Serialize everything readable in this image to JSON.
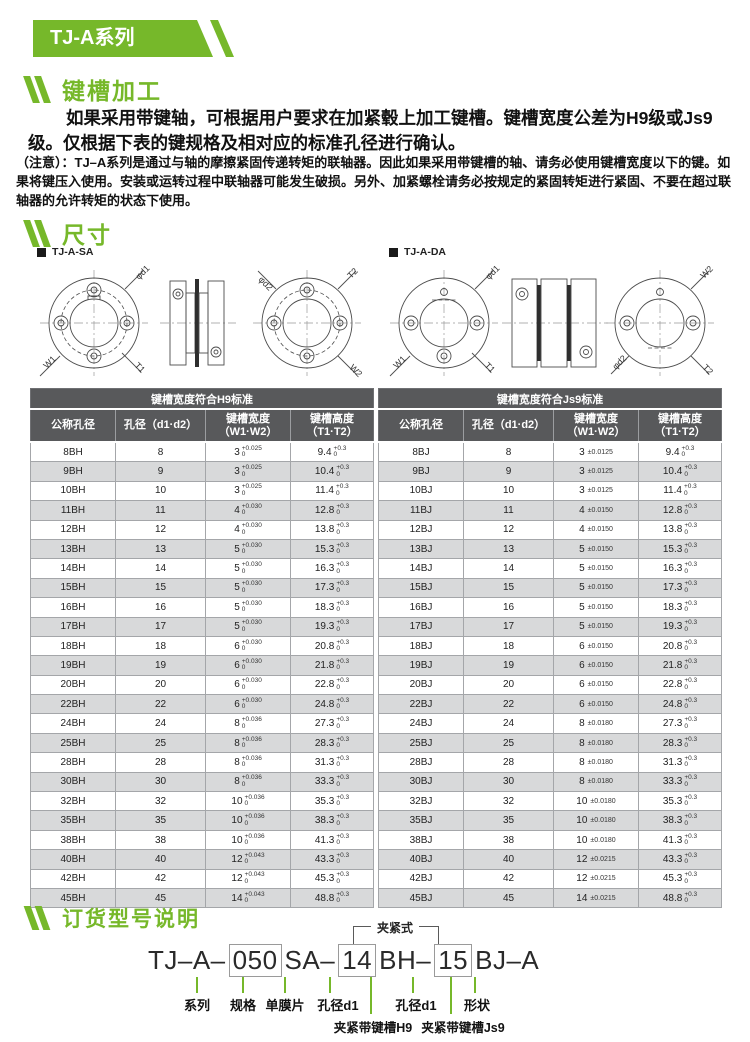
{
  "banner": {
    "title": "TJ-A系列"
  },
  "sections": {
    "keyway_title": "键槽加工",
    "dims_title": "尺寸",
    "ordering_title": "订货型号说明"
  },
  "paragraph": "如果采用带键轴，可根据用户要求在加紧毂上加工键槽。键槽宽度公差为H9级或Js9级。仅根据下表的键规格及相对应的标准孔径进行确认。",
  "note": "（注意）：TJ–A系列是通过与轴的摩擦紧固传递转矩的联轴器。因此如果采用带键槽的轴、请务必使用键槽宽度以下的键。如果将键压入使用。安装或运转过程中联轴器可能发生破损。另外、加紧螺栓请务必按规定的紧固转矩进行紧固、不要在超过联轴器的允许转矩的状态下使用。",
  "drawings": {
    "sa": {
      "caption": "TJ-A-SA",
      "front": {
        "d": "φd1",
        "w": "W1",
        "t": "T1"
      },
      "rear": {
        "d": "φd2",
        "t": "T2",
        "w": "W2"
      }
    },
    "da": {
      "caption": "TJ-A-DA",
      "front": {
        "d": "φd1",
        "w": "W1",
        "t": "T1"
      },
      "rear": {
        "d": "φd2",
        "t": "T2",
        "w": "W2"
      }
    }
  },
  "table": {
    "h9_header": "键槽宽度符合H9标准",
    "js9_header": "键槽宽度符合Js9标准",
    "columns": [
      {
        "l1": "公称孔径"
      },
      {
        "l1": "孔径（d1·d2）"
      },
      {
        "l1": "键槽宽度",
        "l2": "（W1·W2）"
      },
      {
        "l1": "键槽高度",
        "l2": "（T1·T2）"
      }
    ],
    "w_tol_bottom": "0",
    "h_tol_top": "+0.3",
    "h_tol_bottom": "0",
    "rows": [
      {
        "h9": "8BH",
        "js9": "8BJ",
        "bore": "8",
        "w": "3",
        "wtol": "+0.025",
        "jstol": "±0.0125",
        "h": "9.4"
      },
      {
        "h9": "9BH",
        "js9": "9BJ",
        "bore": "9",
        "w": "3",
        "wtol": "+0.025",
        "jstol": "±0.0125",
        "h": "10.4"
      },
      {
        "h9": "10BH",
        "js9": "10BJ",
        "bore": "10",
        "w": "3",
        "wtol": "+0.025",
        "jstol": "±0.0125",
        "h": "11.4"
      },
      {
        "h9": "11BH",
        "js9": "11BJ",
        "bore": "11",
        "w": "4",
        "wtol": "+0.030",
        "jstol": "±0.0150",
        "h": "12.8"
      },
      {
        "h9": "12BH",
        "js9": "12BJ",
        "bore": "12",
        "w": "4",
        "wtol": "+0.030",
        "jstol": "±0.0150",
        "h": "13.8"
      },
      {
        "h9": "13BH",
        "js9": "13BJ",
        "bore": "13",
        "w": "5",
        "wtol": "+0.030",
        "jstol": "±0.0150",
        "h": "15.3"
      },
      {
        "h9": "14BH",
        "js9": "14BJ",
        "bore": "14",
        "w": "5",
        "wtol": "+0.030",
        "jstol": "±0.0150",
        "h": "16.3"
      },
      {
        "h9": "15BH",
        "js9": "15BJ",
        "bore": "15",
        "w": "5",
        "wtol": "+0.030",
        "jstol": "±0.0150",
        "h": "17.3"
      },
      {
        "h9": "16BH",
        "js9": "16BJ",
        "bore": "16",
        "w": "5",
        "wtol": "+0.030",
        "jstol": "±0.0150",
        "h": "18.3"
      },
      {
        "h9": "17BH",
        "js9": "17BJ",
        "bore": "17",
        "w": "5",
        "wtol": "+0.030",
        "jstol": "±0.0150",
        "h": "19.3"
      },
      {
        "h9": "18BH",
        "js9": "18BJ",
        "bore": "18",
        "w": "6",
        "wtol": "+0.030",
        "jstol": "±0.0150",
        "h": "20.8"
      },
      {
        "h9": "19BH",
        "js9": "19BJ",
        "bore": "19",
        "w": "6",
        "wtol": "+0.030",
        "jstol": "±0.0150",
        "h": "21.8"
      },
      {
        "h9": "20BH",
        "js9": "20BJ",
        "bore": "20",
        "w": "6",
        "wtol": "+0.030",
        "jstol": "±0.0150",
        "h": "22.8"
      },
      {
        "h9": "22BH",
        "js9": "22BJ",
        "bore": "22",
        "w": "6",
        "wtol": "+0.030",
        "jstol": "±0.0150",
        "h": "24.8"
      },
      {
        "h9": "24BH",
        "js9": "24BJ",
        "bore": "24",
        "w": "8",
        "wtol": "+0.036",
        "jstol": "±0.0180",
        "h": "27.3"
      },
      {
        "h9": "25BH",
        "js9": "25BJ",
        "bore": "25",
        "w": "8",
        "wtol": "+0.036",
        "jstol": "±0.0180",
        "h": "28.3"
      },
      {
        "h9": "28BH",
        "js9": "28BJ",
        "bore": "28",
        "w": "8",
        "wtol": "+0.036",
        "jstol": "±0.0180",
        "h": "31.3"
      },
      {
        "h9": "30BH",
        "js9": "30BJ",
        "bore": "30",
        "w": "8",
        "wtol": "+0.036",
        "jstol": "±0.0180",
        "h": "33.3"
      },
      {
        "h9": "32BH",
        "js9": "32BJ",
        "bore": "32",
        "w": "10",
        "wtol": "+0.036",
        "jstol": "±0.0180",
        "h": "35.3"
      },
      {
        "h9": "35BH",
        "js9": "35BJ",
        "bore": "35",
        "w": "10",
        "wtol": "+0.036",
        "jstol": "±0.0180",
        "h": "38.3"
      },
      {
        "h9": "38BH",
        "js9": "38BJ",
        "bore": "38",
        "w": "10",
        "wtol": "+0.036",
        "jstol": "±0.0180",
        "h": "41.3"
      },
      {
        "h9": "40BH",
        "js9": "40BJ",
        "bore": "40",
        "w": "12",
        "wtol": "+0.043",
        "jstol": "±0.0215",
        "h": "43.3"
      },
      {
        "h9": "42BH",
        "js9": "42BJ",
        "bore": "42",
        "w": "12",
        "wtol": "+0.043",
        "jstol": "±0.0215",
        "h": "45.3"
      },
      {
        "h9": "45BH",
        "js9": "45BJ",
        "bore": "45",
        "w": "14",
        "wtol": "+0.043",
        "jstol": "±0.0215",
        "h": "48.8"
      }
    ]
  },
  "ordering": {
    "clamp_label": "夹紧式",
    "segments": [
      {
        "text": "TJ–A–"
      },
      {
        "text": "050",
        "boxed": true
      },
      {
        "text": "SA–"
      },
      {
        "text": "14",
        "boxed": true
      },
      {
        "text": "BH–"
      },
      {
        "text": "15",
        "boxed": true
      },
      {
        "text": "BJ–A"
      }
    ],
    "labels_row1": [
      "系列",
      "规格",
      "单膜片",
      "孔径d1",
      "孔径d1",
      "形状"
    ],
    "labels_row2": [
      "夹紧带键槽H9",
      "夹紧带键槽Js9"
    ]
  },
  "colors": {
    "accent_green": "#76b82a",
    "table_header_gray": "#58595b",
    "row_alt_gray": "#d8d9da"
  }
}
